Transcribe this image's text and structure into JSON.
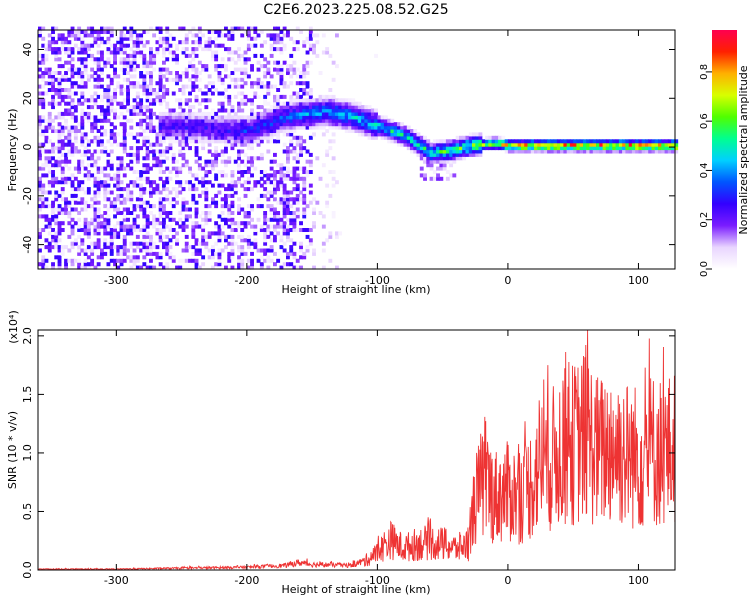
{
  "title": "C2E6.2023.225.08.52.G25",
  "chart_data": [
    {
      "type": "heatmap",
      "xlabel": "Height of straight line (km)",
      "ylabel": "Frequency (Hz)",
      "xlim": [
        -360,
        128
      ],
      "ylim": [
        -50,
        48
      ],
      "xticks": [
        -300,
        -200,
        -100,
        0,
        100
      ],
      "yticks": [
        -40,
        -20,
        0,
        20,
        40
      ],
      "colorbar": {
        "label": "Normalized spectral amplitude",
        "range": [
          0.0,
          0.97
        ],
        "ticks": [
          0.0,
          0.2,
          0.4,
          0.6,
          0.8
        ],
        "tick_labels": [
          "0.0",
          "0.2",
          "0.4",
          "0.6",
          "0.8"
        ],
        "colormap": [
          "#ffffff",
          "#e9d5ff",
          "#7a1cff",
          "#3300ff",
          "#0055ff",
          "#00d0ff",
          "#00ff90",
          "#50ff00",
          "#d8ff00",
          "#ffb000",
          "#ff2000",
          "#ff0050"
        ]
      },
      "ridge": [
        {
          "x": -255,
          "y": 8,
          "amp": 0.25
        },
        {
          "x": -230,
          "y": 7,
          "amp": 0.25
        },
        {
          "x": -200,
          "y": 6,
          "amp": 0.3
        },
        {
          "x": -170,
          "y": 12,
          "amp": 0.35
        },
        {
          "x": -140,
          "y": 14,
          "amp": 0.4
        },
        {
          "x": -120,
          "y": 12,
          "amp": 0.42
        },
        {
          "x": -100,
          "y": 8,
          "amp": 0.45
        },
        {
          "x": -80,
          "y": 4,
          "amp": 0.48
        },
        {
          "x": -60,
          "y": -3,
          "amp": 0.5
        },
        {
          "x": -45,
          "y": -2,
          "amp": 0.55
        },
        {
          "x": -30,
          "y": 0,
          "amp": 0.6
        },
        {
          "x": -10,
          "y": 1,
          "amp": 0.68
        },
        {
          "x": 0,
          "y": 0,
          "amp": 0.78
        },
        {
          "x": 30,
          "y": 0,
          "amp": 0.85
        },
        {
          "x": 60,
          "y": 0,
          "amp": 0.88
        },
        {
          "x": 90,
          "y": 0,
          "amp": 0.88
        },
        {
          "x": 128,
          "y": 0,
          "amp": 0.85
        }
      ]
    },
    {
      "type": "line",
      "xlabel": "Height of straight line (km)",
      "ylabel": "SNR (10 * v/v)",
      "yscale_label": "(x10⁴)",
      "xlim": [
        -360,
        128
      ],
      "ylim": [
        0,
        2.05
      ],
      "xticks": [
        -300,
        -200,
        -100,
        0,
        100
      ],
      "yticks": [
        0.0,
        0.5,
        1.0,
        1.5,
        2.0
      ],
      "ytick_labels": [
        "0.0",
        "0.5",
        "1.0",
        "1.5",
        "2.0"
      ],
      "color": "#ee3333",
      "series": [
        {
          "x": [
            -360,
            -300,
            -250,
            -200,
            -170,
            -160,
            -150,
            -120,
            -110,
            -100,
            -95,
            -90,
            -85,
            -80,
            -70,
            -60,
            -50,
            -40,
            -30,
            -25,
            -20,
            -15,
            -10,
            0,
            10,
            20,
            25,
            30,
            40,
            50,
            55,
            60,
            70,
            80,
            90,
            100,
            110,
            120,
            128
          ],
          "y": [
            0.01,
            0.01,
            0.02,
            0.03,
            0.05,
            0.08,
            0.06,
            0.05,
            0.1,
            0.2,
            0.28,
            0.35,
            0.3,
            0.25,
            0.3,
            0.32,
            0.3,
            0.25,
            0.3,
            0.8,
            1.0,
            0.95,
            0.85,
            0.9,
            0.85,
            1.05,
            1.3,
            1.2,
            1.4,
            1.45,
            1.5,
            1.55,
            1.35,
            1.45,
            1.35,
            1.3,
            1.4,
            1.35,
            1.4
          ]
        }
      ]
    }
  ]
}
